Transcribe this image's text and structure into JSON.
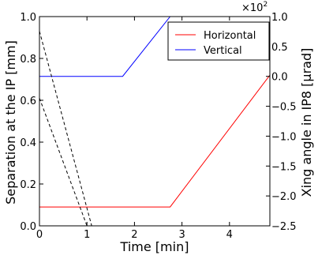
{
  "chart_data": {
    "type": "line",
    "xlabel": "Time [min]",
    "ylabel_left": "Separation at the IP [mm]",
    "ylabel_right": "Xing angle in IP8 [μrad]",
    "right_axis_multiplier": "×10",
    "right_axis_multiplier_exp": "2",
    "xlim": [
      0,
      4.85
    ],
    "ylim_left": [
      0,
      1.0
    ],
    "ylim_right": [
      -2.5,
      1.0
    ],
    "x_ticks": [
      "0",
      "1",
      "2",
      "3",
      "4"
    ],
    "y_left_ticks": [
      "0.0",
      "0.2",
      "0.4",
      "0.6",
      "0.8",
      "1.0"
    ],
    "y_right_ticks": [
      "−2.5",
      "−2.0",
      "−1.5",
      "−1.0",
      "−0.5",
      "0.0",
      "0.5",
      "1.0"
    ],
    "grid": false,
    "legend_position": "top-right",
    "series": [
      {
        "name": "Horizontal",
        "axis": "left",
        "color": "#ff0000",
        "style": "solid",
        "x": [
          0,
          2.75,
          4.85
        ],
        "y": [
          0.09,
          0.09,
          0.72
        ]
      },
      {
        "name": "Vertical",
        "axis": "right",
        "color": "#0000ff",
        "style": "solid",
        "x": [
          0,
          1.75,
          2.75
        ],
        "y": [
          0.0,
          0.0,
          1.0
        ]
      },
      {
        "name": "",
        "axis": "left",
        "color": "#000000",
        "style": "dashed",
        "x": [
          0,
          1.1
        ],
        "y": [
          0.93,
          0.0
        ]
      },
      {
        "name": "",
        "axis": "left",
        "color": "#000000",
        "style": "dashed",
        "x": [
          0,
          1.0
        ],
        "y": [
          0.61,
          0.0
        ]
      }
    ]
  }
}
